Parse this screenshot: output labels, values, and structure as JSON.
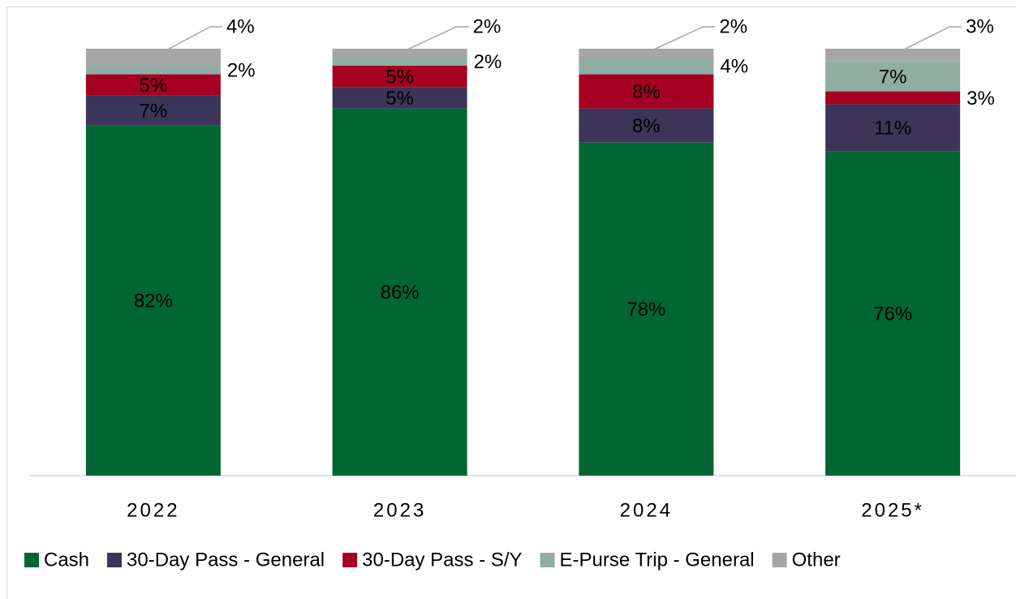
{
  "chart_data": {
    "type": "stacked_bar",
    "categories": [
      "2022",
      "2023",
      "2024",
      "2025*"
    ],
    "series": [
      {
        "name": "Cash",
        "color": "#006633",
        "values": [
          82,
          86,
          78,
          76
        ],
        "value_labels": [
          "82%",
          "86%",
          "78%",
          "76%"
        ]
      },
      {
        "name": "30-Day Pass - General",
        "color": "#3c3559",
        "values": [
          7,
          5,
          8,
          11
        ],
        "value_labels": [
          "7%",
          "5%",
          "8%",
          "11%"
        ]
      },
      {
        "name": "30-Day Pass - S/Y",
        "color": "#a50021",
        "values": [
          5,
          5,
          8,
          3
        ],
        "value_labels": [
          "5%",
          "5%",
          "8%",
          "3%"
        ]
      },
      {
        "name": "E-Purse Trip - General",
        "color": "#8fada0",
        "values": [
          2,
          2,
          4,
          7
        ],
        "value_labels": [
          "2%",
          "2%",
          "4%",
          "7%"
        ]
      },
      {
        "name": "Other",
        "color": "#a6a6a6",
        "values": [
          4,
          2,
          2,
          3
        ],
        "value_labels": [
          "4%",
          "2%",
          "2%",
          "3%"
        ]
      }
    ],
    "legend": "bottom"
  }
}
